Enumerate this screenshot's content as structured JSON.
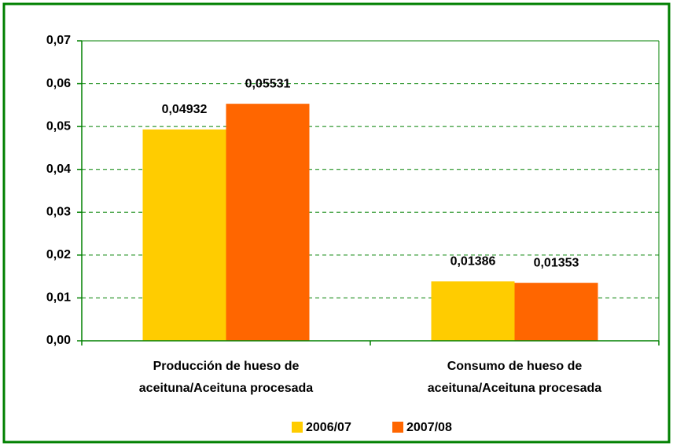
{
  "chart_data": {
    "type": "bar",
    "categories": [
      [
        "Producción de hueso de",
        "aceituna/Aceituna procesada"
      ],
      [
        "Consumo de hueso de",
        "aceituna/Aceituna procesada"
      ]
    ],
    "series": [
      {
        "name": "2006/07",
        "color": "#FFCC00",
        "values": [
          0.04932,
          0.01386
        ],
        "value_labels": [
          "0,04932",
          "0,01386"
        ]
      },
      {
        "name": "2007/08",
        "color": "#FF6600",
        "values": [
          0.05531,
          0.01353
        ],
        "value_labels": [
          "0,05531",
          "0,01353"
        ]
      }
    ],
    "ylim": [
      0,
      0.07
    ],
    "yticks": [
      {
        "value": 0,
        "label": "0,00"
      },
      {
        "value": 0.01,
        "label": "0,01"
      },
      {
        "value": 0.02,
        "label": "0,02"
      },
      {
        "value": 0.03,
        "label": "0,03"
      },
      {
        "value": 0.04,
        "label": "0,04"
      },
      {
        "value": 0.05,
        "label": "0,05"
      },
      {
        "value": 0.06,
        "label": "0,06"
      },
      {
        "value": 0.07,
        "label": "0,07"
      }
    ],
    "grid": true,
    "legend": "bottom"
  }
}
